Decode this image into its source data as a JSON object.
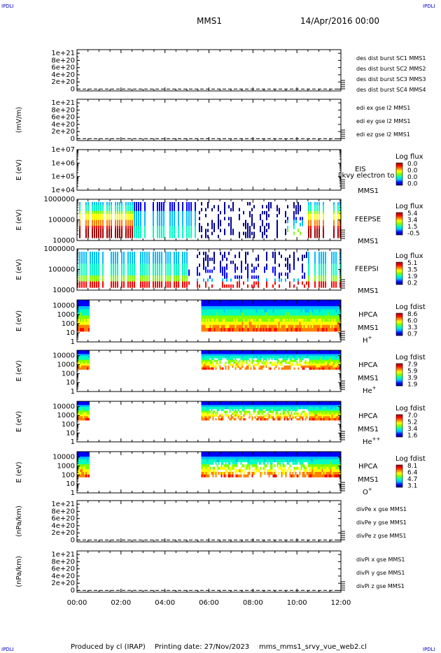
{
  "header": {
    "corner_tl": "IPDLI",
    "corner_tr": "IPDLI",
    "corner_bl": "IPDLI",
    "corner_br": "IPDLI",
    "spacecraft": "MMS1",
    "date": "14/Apr/2016 00:00"
  },
  "footer": {
    "produced_by": "Produced by cl (IRAP)",
    "printing_date": "Printing date: 27/Nov/2023",
    "script": "mms_mms1_srvy_vue_web2.cl"
  },
  "colors": {
    "red": "#dd0000",
    "magenta": "#dd00dd",
    "green": "#00cc00",
    "blue": "#0000cc",
    "spectrogram_scale": [
      "#00008f",
      "#0000ff",
      "#00bfff",
      "#00ffbf",
      "#7fff00",
      "#ffff00",
      "#ff8000",
      "#ff0000",
      "#a00000"
    ]
  },
  "time_axis": {
    "ticks": [
      "00:00",
      "02:00",
      "04:00",
      "06:00",
      "08:00",
      "10:00",
      "12:00"
    ],
    "range_hours": [
      0,
      12
    ]
  },
  "chart_data": [
    {
      "type": "line",
      "ylabel": "",
      "ticks": [
        "1e+21",
        "8e+20",
        "6e+20",
        "4e+20",
        "2e+20",
        "0"
      ],
      "ylim": [
        -5e+19,
        1.1e+21
      ],
      "zero_line": true,
      "legend": [
        {
          "label": "des dist burst SC1 MMS1",
          "color": "#0000cc"
        },
        {
          "label": "des dist burst SC2 MMS2",
          "color": "#dd00dd"
        },
        {
          "label": "des dist burst SC3 MMS3",
          "color": "#dd0000"
        },
        {
          "label": "des dist burst SC4 MMS4",
          "color": "#00cc00"
        }
      ],
      "series": []
    },
    {
      "type": "line",
      "ylabel": "(mV/m)",
      "ticks": [
        "1e+21",
        "8e+20",
        "6e+20",
        "4e+20",
        "2e+20",
        "0"
      ],
      "ylim": [
        -5e+19,
        1.1e+21
      ],
      "zero_line": true,
      "legend": [
        {
          "label": "edi ex gse l2 MMS1",
          "color": "#dd0000"
        },
        {
          "label": "edi ey gse l2 MMS1",
          "color": "#00cc00"
        },
        {
          "label": "edi ez gse l2 MMS1",
          "color": "#0000cc"
        }
      ],
      "series": []
    },
    {
      "type": "heatmap",
      "ylabel": "E (eV)",
      "ticks": [
        "1e+07",
        "1e+06",
        "1e+05",
        "1e+04"
      ],
      "ylim": [
        10000,
        10000000
      ],
      "log_y": true,
      "instrument": "EIS",
      "instrument_sub": "MMS1",
      "overlay_text": "likvy electron to",
      "colorbar": {
        "title": "Log flux",
        "ticks": [
          "0.0",
          "0.0",
          "0.0",
          "0.0"
        ]
      },
      "segments": []
    },
    {
      "type": "heatmap",
      "ylabel": "E (eV)",
      "ticks": [
        "1000000",
        "100000",
        "10000"
      ],
      "ylim": [
        10000,
        1000000
      ],
      "log_y": true,
      "instrument": "FEEPSE",
      "instrument_sub": "MMS1",
      "colorbar": {
        "title": "Log flux",
        "ticks": [
          "5.4",
          "3.4",
          "1.5",
          "-0.5"
        ]
      },
      "segments": [
        [
          0.0,
          12.0
        ]
      ]
    },
    {
      "type": "heatmap",
      "ylabel": "E (eV)",
      "ticks": [
        "1000000",
        "100000",
        "10000"
      ],
      "ylim": [
        10000,
        1000000
      ],
      "log_y": true,
      "instrument": "FEEPSI",
      "instrument_sub": "MMS1",
      "colorbar": {
        "title": "Log flux",
        "ticks": [
          "5.1",
          "3.5",
          "1.9",
          "0.2"
        ]
      },
      "segments": [
        [
          0.0,
          12.0
        ]
      ]
    },
    {
      "type": "heatmap",
      "ylabel": "E (eV)",
      "ticks": [
        "10000",
        "1000",
        "100",
        "10",
        "1"
      ],
      "ylim": [
        1,
        40000
      ],
      "log_y": true,
      "instrument": "HPCA",
      "instrument_sub": "MMS1",
      "species": "H",
      "species_sup": "+",
      "colorbar": {
        "title": "Log fdist",
        "ticks": [
          "8.6",
          "6.0",
          "3.3",
          "0.7"
        ]
      },
      "segments": [
        [
          0.0,
          0.55
        ],
        [
          5.65,
          12.0
        ]
      ]
    },
    {
      "type": "heatmap",
      "ylabel": "E (eV)",
      "ticks": [
        "10000",
        "1000",
        "100",
        "10",
        "1"
      ],
      "ylim": [
        1,
        40000
      ],
      "log_y": true,
      "instrument": "HPCA",
      "instrument_sub": "MMS1",
      "species": "He",
      "species_sup": "+",
      "colorbar": {
        "title": "Log fdist",
        "ticks": [
          "7.9",
          "5.9",
          "3.9",
          "1.9"
        ]
      },
      "segments": [
        [
          0.0,
          0.55
        ],
        [
          5.65,
          12.0
        ]
      ]
    },
    {
      "type": "heatmap",
      "ylabel": "E (eV)",
      "ticks": [
        "10000",
        "1000",
        "100",
        "10",
        "1"
      ],
      "ylim": [
        1,
        40000
      ],
      "log_y": true,
      "instrument": "HPCA",
      "instrument_sub": "MMS1",
      "species": "He",
      "species_sup": "++",
      "colorbar": {
        "title": "Log fdist",
        "ticks": [
          "7.0",
          "5.2",
          "3.4",
          "1.6"
        ]
      },
      "segments": [
        [
          0.0,
          0.55
        ],
        [
          5.65,
          12.0
        ]
      ]
    },
    {
      "type": "heatmap",
      "ylabel": "E (eV)",
      "ticks": [
        "10000",
        "1000",
        "100",
        "10",
        "1"
      ],
      "ylim": [
        1,
        40000
      ],
      "log_y": true,
      "instrument": "HPCA",
      "instrument_sub": "MMS1",
      "species": "O",
      "species_sup": "+",
      "colorbar": {
        "title": "Log fdist",
        "ticks": [
          "8.1",
          "6.4",
          "4.7",
          "3.1"
        ]
      },
      "segments": [
        [
          0.0,
          0.55
        ],
        [
          5.65,
          12.0
        ]
      ]
    },
    {
      "type": "line",
      "ylabel": "(nPa/km)",
      "ticks": [
        "1e+21",
        "8e+20",
        "6e+20",
        "4e+20",
        "2e+20",
        "0"
      ],
      "ylim": [
        -5e+19,
        1.1e+21
      ],
      "zero_line": true,
      "legend": [
        {
          "label": "divPe x gse MMS1",
          "color": "#dd0000"
        },
        {
          "label": "divPe y gse MMS1",
          "color": "#00cc00"
        },
        {
          "label": "divPe z gse MMS1",
          "color": "#0000cc"
        }
      ],
      "series": []
    },
    {
      "type": "line",
      "ylabel": "(nPa/km)",
      "ticks": [
        "1e+21",
        "8e+20",
        "6e+20",
        "4e+20",
        "2e+20",
        "0"
      ],
      "ylim": [
        -5e+19,
        1.1e+21
      ],
      "zero_line": true,
      "legend": [
        {
          "label": "divPi x gse MMS1",
          "color": "#dd0000"
        },
        {
          "label": "divPi y gse MMS1",
          "color": "#00cc00"
        },
        {
          "label": "divPi z gse MMS1",
          "color": "#0000cc"
        }
      ],
      "series": []
    }
  ]
}
